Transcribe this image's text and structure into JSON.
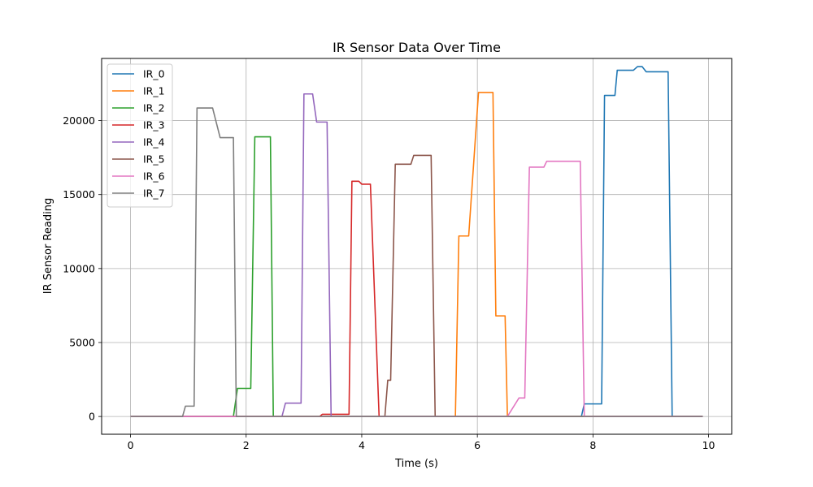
{
  "chart_data": {
    "type": "line",
    "title": "IR Sensor Data Over Time",
    "xlabel": "Time (s)",
    "ylabel": "IR Sensor Reading",
    "xlim": [
      -0.5,
      10.4
    ],
    "ylim": [
      -1200,
      24200
    ],
    "xticks": [
      0,
      2,
      4,
      6,
      8,
      10
    ],
    "yticks": [
      0,
      5000,
      10000,
      15000,
      20000
    ],
    "grid": true,
    "legend_position": "upper-left",
    "series": [
      {
        "name": "IR_0",
        "color": "#1f77b4",
        "x": [
          0,
          7.8,
          7.85,
          8.15,
          8.2,
          8.38,
          8.42,
          8.7,
          8.77,
          8.85,
          8.92,
          9.3,
          9.37,
          9.9
        ],
        "y": [
          0,
          0,
          850,
          850,
          21700,
          21700,
          23400,
          23400,
          23650,
          23650,
          23300,
          23300,
          0,
          0
        ]
      },
      {
        "name": "IR_1",
        "color": "#ff7f0e",
        "x": [
          0,
          5.62,
          5.68,
          5.85,
          6.02,
          6.27,
          6.32,
          6.48,
          6.52,
          9.9
        ],
        "y": [
          0,
          0,
          12200,
          12200,
          21900,
          21900,
          6800,
          6800,
          0,
          0
        ]
      },
      {
        "name": "IR_2",
        "color": "#2ca02c",
        "x": [
          0,
          1.78,
          1.85,
          2.08,
          2.15,
          2.42,
          2.47,
          9.9
        ],
        "y": [
          0,
          0,
          1900,
          1900,
          18900,
          18900,
          0,
          0
        ]
      },
      {
        "name": "IR_3",
        "color": "#d62728",
        "x": [
          0,
          3.27,
          3.32,
          3.78,
          3.83,
          3.95,
          4.0,
          4.15,
          4.3,
          9.9
        ],
        "y": [
          0,
          0,
          150,
          150,
          15900,
          15900,
          15700,
          15700,
          0,
          0
        ]
      },
      {
        "name": "IR_4",
        "color": "#9467bd",
        "x": [
          0,
          2.62,
          2.68,
          2.95,
          3.0,
          3.15,
          3.22,
          3.4,
          3.47,
          9.9
        ],
        "y": [
          0,
          0,
          900,
          900,
          21800,
          21800,
          19900,
          19900,
          0,
          0
        ]
      },
      {
        "name": "IR_5",
        "color": "#8c564b",
        "x": [
          0,
          4.4,
          4.45,
          4.5,
          4.58,
          4.85,
          4.9,
          5.2,
          5.27,
          9.9
        ],
        "y": [
          0,
          0,
          2450,
          2450,
          17050,
          17050,
          17650,
          17650,
          0,
          0
        ]
      },
      {
        "name": "IR_6",
        "color": "#e377c2",
        "x": [
          0,
          6.52,
          6.72,
          6.82,
          6.9,
          7.15,
          7.2,
          7.78,
          7.85,
          9.9
        ],
        "y": [
          0,
          0,
          1250,
          1250,
          16850,
          16850,
          17250,
          17250,
          0,
          0
        ]
      },
      {
        "name": "IR_7",
        "color": "#7f7f7f",
        "x": [
          0,
          0.9,
          0.95,
          1.1,
          1.15,
          1.42,
          1.55,
          1.78,
          1.83,
          9.9
        ],
        "y": [
          0,
          0,
          700,
          700,
          20850,
          20850,
          18850,
          18850,
          0,
          0
        ]
      }
    ]
  }
}
